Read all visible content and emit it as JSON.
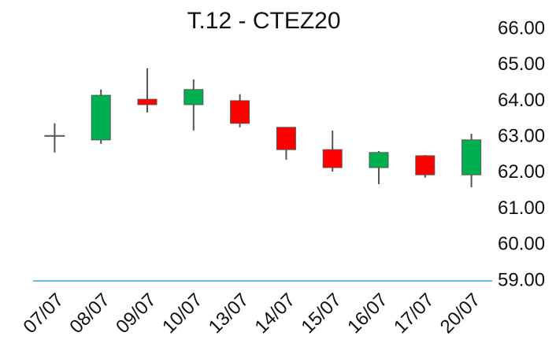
{
  "chart_data": {
    "type": "candlestick",
    "title": "T.12 - CTEZ20",
    "categories": [
      "07/07",
      "08/07",
      "09/07",
      "10/07",
      "13/07",
      "14/07",
      "15/07",
      "16/07",
      "17/07",
      "20/07"
    ],
    "open": [
      63.03,
      62.92,
      64.05,
      63.9,
      64.01,
      63.27,
      62.65,
      62.15,
      62.48,
      61.95
    ],
    "high": [
      63.38,
      64.32,
      64.91,
      64.6,
      64.19,
      63.27,
      63.18,
      62.61,
      62.5,
      63.09
    ],
    "low": [
      62.57,
      62.81,
      63.68,
      63.18,
      63.27,
      62.37,
      62.04,
      61.69,
      61.87,
      61.6
    ],
    "close": [
      63.03,
      64.16,
      63.9,
      64.32,
      63.38,
      62.65,
      62.15,
      62.57,
      61.95,
      62.92
    ],
    "up_color": "#00b050",
    "down_color": "#ff0000",
    "flat_color": "#555555",
    "ylim": [
      59,
      66
    ],
    "yticks": [
      {
        "value": 59,
        "label": "59.00"
      },
      {
        "value": 60,
        "label": "60.00"
      },
      {
        "value": 61,
        "label": "61.00"
      },
      {
        "value": 62,
        "label": "62.00"
      },
      {
        "value": 63,
        "label": "63.00"
      },
      {
        "value": 64,
        "label": "64.00"
      },
      {
        "value": 65,
        "label": "65.00"
      },
      {
        "value": 66,
        "label": "66.00"
      }
    ],
    "grid": false
  }
}
